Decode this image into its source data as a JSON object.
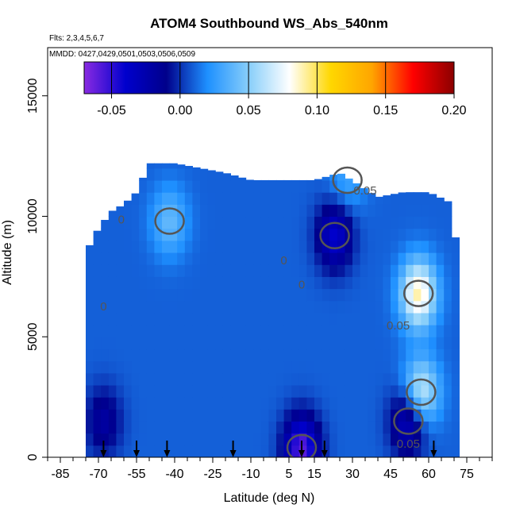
{
  "chart_data": {
    "type": "heatmap",
    "title": "ATOM4 Southbound WS_Abs_540nm",
    "flights_note": "Flts: 2,3,4,5,6,7",
    "dates_note": "MMDD: 0427,0429,0501,0503,0506,0509",
    "xlabel": "Latitude (deg N)",
    "ylabel": "Altitude (m)",
    "xlim": [
      -90,
      85
    ],
    "ylim": [
      0,
      17000
    ],
    "x_ticks": [
      -85,
      -70,
      -55,
      -40,
      -25,
      -10,
      5,
      15,
      30,
      45,
      60,
      75
    ],
    "y_ticks": [
      0,
      5000,
      10000,
      15000
    ],
    "colorbar": {
      "min": -0.07,
      "max": 0.2,
      "ticks": [
        -0.05,
        0.0,
        0.05,
        0.1,
        0.15,
        0.2
      ],
      "tick_labels": [
        "-0.05",
        "0.00",
        "0.05",
        "0.10",
        "0.15",
        "0.20"
      ],
      "colors": [
        "#8a2be2",
        "#0000cd",
        "#00008b",
        "#1e90ff",
        "#87cefa",
        "#ffffff",
        "#ffd700",
        "#ffa500",
        "#ff0000",
        "#8b0000"
      ]
    },
    "field": {
      "background_value": 0.01,
      "coverage_x": [
        -75,
        72
      ],
      "altitude_top": [
        [
          -75,
          8500
        ],
        [
          -70,
          9500
        ],
        [
          -65,
          10200
        ],
        [
          -60,
          10500
        ],
        [
          -55,
          11000
        ],
        [
          -50,
          12200
        ],
        [
          -40,
          12200
        ],
        [
          -30,
          12000
        ],
        [
          -20,
          11800
        ],
        [
          -10,
          11500
        ],
        [
          5,
          11500
        ],
        [
          15,
          11500
        ],
        [
          25,
          11800
        ],
        [
          40,
          10800
        ],
        [
          50,
          11000
        ],
        [
          60,
          11000
        ],
        [
          70,
          10500
        ],
        [
          72,
          5000
        ]
      ],
      "features": [
        {
          "lat": 56,
          "alt": 6800,
          "value": 0.09
        },
        {
          "lat": 57,
          "alt": 2700,
          "value": 0.07
        },
        {
          "lat": 52,
          "alt": 1500,
          "value": -0.04
        },
        {
          "lat": 23,
          "alt": 9200,
          "value": -0.04
        },
        {
          "lat": 10,
          "alt": 400,
          "value": -0.06
        },
        {
          "lat": -42,
          "alt": 9800,
          "value": 0.04
        },
        {
          "lat": 28,
          "alt": 11500,
          "value": 0.03
        },
        {
          "lat": -68,
          "alt": 1500,
          "value": -0.02
        }
      ]
    },
    "contour_labels": [
      {
        "text": "0.05",
        "lat": 35,
        "alt": 10900
      },
      {
        "text": "0",
        "lat": -61,
        "alt": 9700
      },
      {
        "text": "0",
        "lat": 10,
        "alt": 7000
      },
      {
        "text": "0.05",
        "lat": 48,
        "alt": 5300
      },
      {
        "text": "0",
        "lat": -68,
        "alt": 6100
      },
      {
        "text": "0",
        "lat": 3,
        "alt": 8000
      },
      {
        "text": "0.05",
        "lat": 52,
        "alt": 400
      }
    ],
    "flight_markers_lat": [
      -68,
      -55,
      -43,
      -17,
      10,
      19,
      62
    ]
  }
}
